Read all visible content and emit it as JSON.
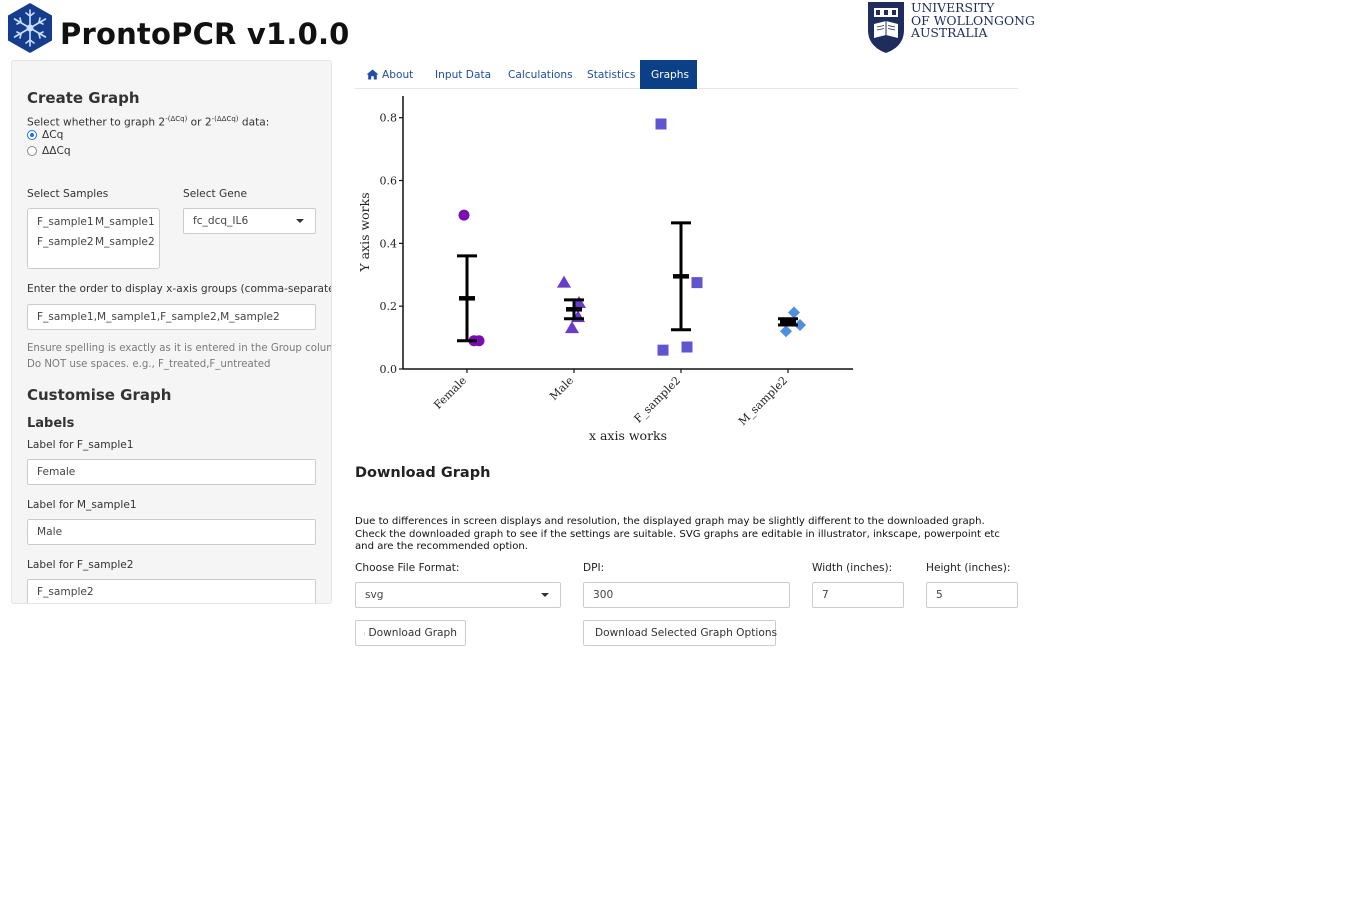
{
  "header": {
    "app_title": "ProntoPCR v1.0.0",
    "uow_lines": [
      "UNIVERSITY",
      "OF WOLLONGONG",
      "AUSTRALIA"
    ]
  },
  "sidebar": {
    "create_graph_heading": "Create Graph",
    "graph_type_label_prefix": "Select whether to graph 2",
    "graph_type_sup1": "-(ΔCq)",
    "graph_type_mid": " or 2",
    "graph_type_sup2": "-(ΔΔCq)",
    "graph_type_suffix": " data:",
    "graph_type_options": [
      {
        "label": "ΔCq",
        "checked": true
      },
      {
        "label": "ΔΔCq",
        "checked": false
      }
    ],
    "select_samples_label": "Select Samples",
    "samples": [
      "F_sample1",
      "M_sample1",
      "F_sample2",
      "M_sample2"
    ],
    "select_gene_label": "Select Gene",
    "gene_value": "fc_dcq_IL6",
    "order_label": "Enter the order to display x-axis groups (comma-separated):",
    "order_value": "F_sample1,M_sample1,F_sample2,M_sample2",
    "order_help_1": "Ensure spelling is exactly as it is entered in the Group column.",
    "order_help_2": "Do NOT use spaces. e.g., F_treated,F_untreated",
    "customise_heading": "Customise Graph",
    "labels_heading": "Labels",
    "label_fields": [
      {
        "label": "Label for F_sample1",
        "value": "Female"
      },
      {
        "label": "Label for M_sample1",
        "value": "Male"
      },
      {
        "label": "Label for F_sample2",
        "value": "F_sample2"
      }
    ]
  },
  "tabs": [
    {
      "label": "About",
      "icon": "home-icon",
      "active": false
    },
    {
      "label": "Input Data",
      "active": false
    },
    {
      "label": "Calculations",
      "active": false
    },
    {
      "label": "Statistics",
      "active": false
    },
    {
      "label": "Graphs",
      "active": true
    }
  ],
  "chart_data": {
    "type": "scatter",
    "xlabel": "x axis works",
    "ylabel": "Y axis works",
    "ylim": [
      0,
      0.85
    ],
    "yticks": [
      0.0,
      0.2,
      0.4,
      0.6,
      0.8
    ],
    "ytick_labels": [
      "0.0",
      "0.2",
      "0.4",
      "0.6",
      "0.8"
    ],
    "categories": [
      "Female",
      "Male",
      "F_sample2",
      "M_sample2"
    ],
    "grid": false,
    "legend": "none",
    "series": [
      {
        "category": "Female",
        "shape": "circle",
        "color": "#7b0cb3",
        "points": [
          0.49,
          0.09,
          0.09
        ],
        "mean": 0.225,
        "err_low": 0.09,
        "err_high": 0.36
      },
      {
        "category": "Male",
        "shape": "triangle",
        "color": "#6a3ac9",
        "points": [
          0.275,
          0.21,
          0.13,
          0.165
        ],
        "mean": 0.19,
        "err_low": 0.16,
        "err_high": 0.22
      },
      {
        "category": "F_sample2",
        "shape": "square",
        "color": "#6055d0",
        "points": [
          0.78,
          0.275,
          0.06,
          0.07
        ],
        "mean": 0.295,
        "err_low": 0.125,
        "err_high": 0.465
      },
      {
        "category": "M_sample2",
        "shape": "diamond",
        "color": "#4f8fe0",
        "points": [
          0.18,
          0.14,
          0.12
        ],
        "mean": 0.15,
        "err_low": 0.14,
        "err_high": 0.16
      }
    ]
  },
  "download": {
    "title": "Download Graph",
    "note": "Due to differences in screen displays and resolution, the displayed graph may be slightly different to the downloaded graph. Check the downloaded graph to see if the settings are suitable. SVG graphs are editable in illustrator, inkscape, powerpoint etc and are the recommended option.",
    "format_label": "Choose File Format:",
    "format_value": "svg",
    "dpi_label": "DPI:",
    "dpi_value": "300",
    "width_label": "Width (inches):",
    "width_value": "7",
    "height_label": "Height (inches):",
    "height_value": "5",
    "download_button": "Download Graph",
    "download_options_button": "Download Selected Graph Options"
  }
}
